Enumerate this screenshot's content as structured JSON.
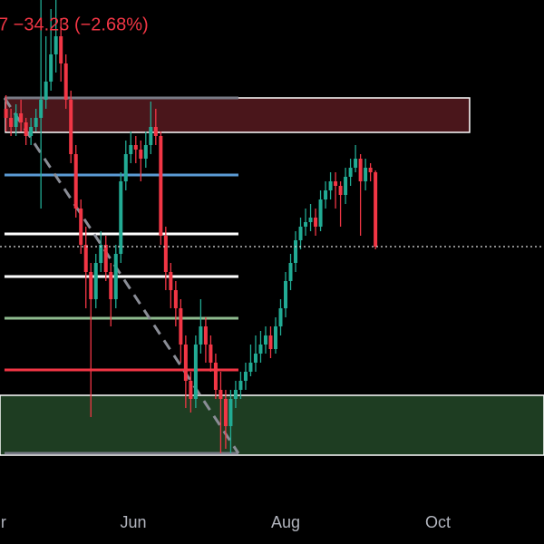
{
  "chart_data": {
    "type": "candlestick",
    "header": "7  −34.23 (−2.68%)",
    "header_color": "#f23645",
    "up_color": "#22ab94",
    "down_color": "#f23645",
    "xlim": [
      -53.4,
      164.5
    ],
    "ylim": [
      40,
      600
    ],
    "xticks": [
      {
        "value": -52,
        "label": "r"
      },
      {
        "value": 0,
        "label": "Jun"
      },
      {
        "value": 61,
        "label": "Aug"
      },
      {
        "value": 122,
        "label": "Oct"
      }
    ],
    "x": [
      -51,
      -49,
      -47,
      -45,
      -43,
      -41,
      -39,
      -37,
      -35,
      -33,
      -31,
      -29,
      -27,
      -25,
      -23,
      -21,
      -19,
      -17,
      -15,
      -13,
      -11,
      -9,
      -7,
      -5,
      -3,
      -1,
      1,
      3,
      5,
      7,
      9,
      11,
      13,
      15,
      17,
      19,
      21,
      23,
      25,
      27,
      29,
      31,
      33,
      35,
      37,
      39,
      41,
      43,
      45,
      47,
      49,
      51,
      53,
      55,
      57,
      59,
      61,
      63,
      65,
      67,
      69,
      71,
      73,
      75,
      77,
      79,
      81,
      83,
      85,
      87,
      89,
      91,
      93,
      95,
      97
    ],
    "open": [
      480,
      470,
      460,
      475,
      465,
      450,
      460,
      470,
      490,
      510,
      540,
      560,
      530,
      490,
      430,
      370,
      330,
      300,
      270,
      310,
      330,
      300,
      270,
      320,
      400,
      430,
      440,
      435,
      425,
      440,
      460,
      450,
      340,
      300,
      280,
      260,
      220,
      180,
      160,
      220,
      240,
      220,
      200,
      170,
      160,
      130,
      160,
      170,
      180,
      190,
      200,
      210,
      220,
      230,
      215,
      240,
      260,
      290,
      310,
      335,
      350,
      355,
      360,
      350,
      380,
      390,
      400,
      395,
      385,
      405,
      415,
      425,
      400,
      415,
      410
    ],
    "high": [
      495,
      480,
      485,
      490,
      470,
      470,
      480,
      600,
      560,
      590,
      600,
      580,
      540,
      500,
      440,
      380,
      350,
      310,
      320,
      345,
      340,
      310,
      330,
      410,
      445,
      455,
      450,
      445,
      455,
      488,
      480,
      455,
      350,
      310,
      290,
      270,
      230,
      190,
      230,
      270,
      250,
      230,
      210,
      190,
      170,
      170,
      180,
      190,
      200,
      220,
      230,
      235,
      240,
      240,
      250,
      270,
      300,
      320,
      345,
      360,
      370,
      375,
      370,
      390,
      400,
      410,
      410,
      400,
      415,
      425,
      440,
      430,
      425,
      420,
      412
    ],
    "low": [
      455,
      450,
      450,
      455,
      440,
      440,
      455,
      370,
      480,
      500,
      520,
      510,
      480,
      420,
      360,
      320,
      260,
      140,
      260,
      300,
      290,
      240,
      260,
      310,
      390,
      420,
      420,
      400,
      415,
      430,
      440,
      330,
      280,
      260,
      240,
      200,
      150,
      145,
      150,
      210,
      200,
      190,
      160,
      100,
      105,
      100,
      150,
      160,
      170,
      185,
      190,
      200,
      210,
      205,
      210,
      230,
      250,
      280,
      300,
      325,
      340,
      345,
      340,
      345,
      370,
      380,
      370,
      350,
      375,
      395,
      410,
      340,
      390,
      400,
      325
    ],
    "close": [
      470,
      460,
      475,
      465,
      450,
      460,
      470,
      490,
      510,
      540,
      560,
      530,
      490,
      430,
      370,
      330,
      300,
      270,
      310,
      330,
      300,
      270,
      320,
      400,
      430,
      440,
      435,
      425,
      440,
      460,
      450,
      340,
      300,
      280,
      260,
      220,
      180,
      160,
      220,
      240,
      220,
      200,
      170,
      160,
      130,
      160,
      170,
      180,
      190,
      200,
      210,
      220,
      230,
      215,
      240,
      260,
      290,
      310,
      335,
      350,
      355,
      360,
      350,
      380,
      390,
      400,
      395,
      385,
      405,
      415,
      425,
      400,
      415,
      410,
      328
    ],
    "zones": [
      {
        "x": [
          -51.2,
          134.7
        ],
        "y": [
          454,
          492
        ],
        "color": "#4a161b"
      },
      {
        "x": [
          -53.4,
          164.5
        ],
        "y": [
          98,
          164
        ],
        "color": "#1e3d22"
      }
    ],
    "levels": [
      {
        "x": [
          -51.6,
          42.1
        ],
        "y": 492,
        "color": "#787b86"
      },
      {
        "x": [
          -51.6,
          42.1
        ],
        "y": 407,
        "color": "#5b9bd5"
      },
      {
        "x": [
          -51.6,
          42.1
        ],
        "y": 342,
        "color": "#ffffff"
      },
      {
        "x": [
          -51.6,
          42.1
        ],
        "y": 295,
        "color": "#ffffff"
      },
      {
        "x": [
          -51.6,
          42.1
        ],
        "y": 249,
        "color": "#8fbc8f"
      },
      {
        "x": [
          -51.6,
          42.1
        ],
        "y": 192,
        "color": "#f23645"
      },
      {
        "x": [
          -51.6,
          42.1
        ],
        "y": 100,
        "color": "#787b86"
      }
    ],
    "trendlines": [
      {
        "x": [
          -51.6,
          42.1
        ],
        "y": [
          492,
          100
        ],
        "color": "#8a8d96"
      }
    ]
  }
}
